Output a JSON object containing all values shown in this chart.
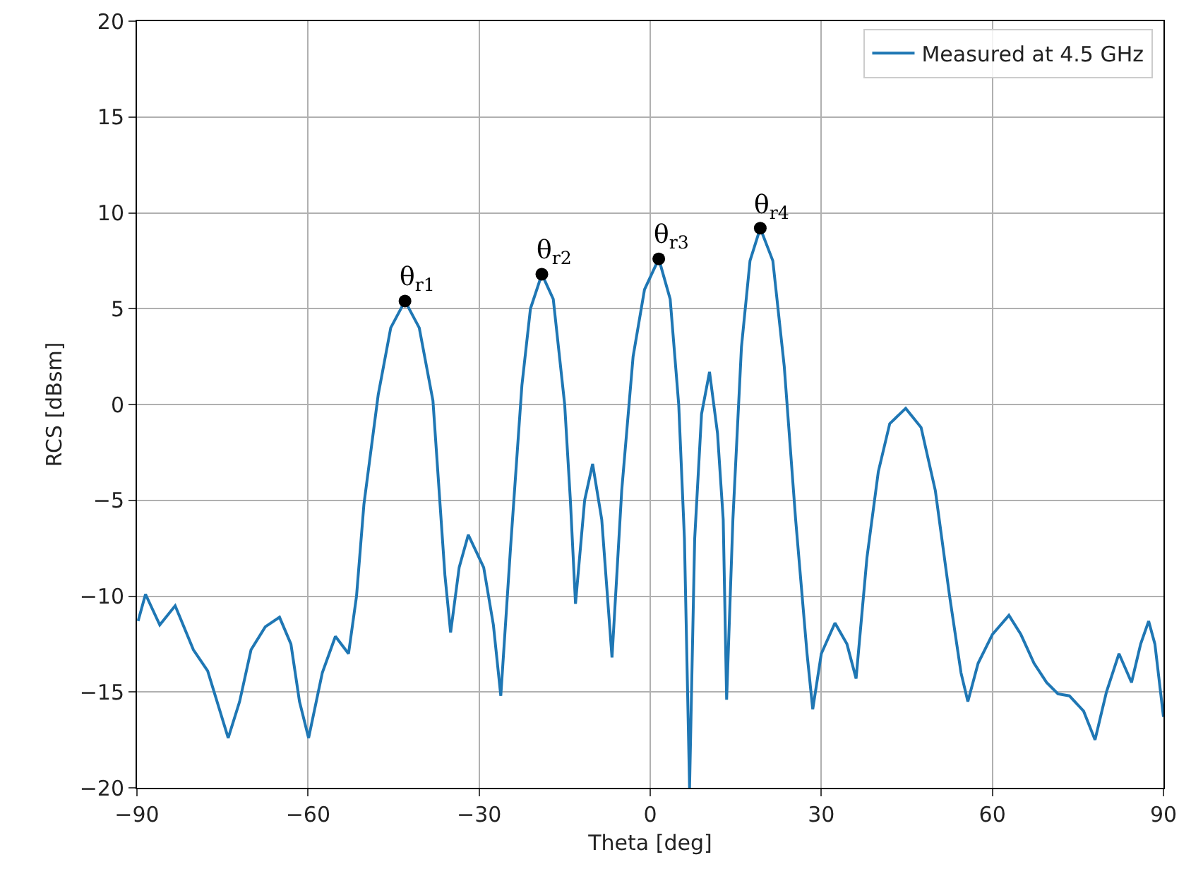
{
  "chart_data": {
    "type": "line",
    "xlabel": "Theta [deg]",
    "ylabel": "RCS [dBsm]",
    "xlim": [
      -90,
      90
    ],
    "xticks": [
      -90,
      -60,
      -30,
      0,
      30,
      60,
      90
    ],
    "ylim": [
      -20,
      20
    ],
    "yticks": [
      -20,
      -15,
      -10,
      -5,
      0,
      5,
      10,
      15,
      20
    ],
    "grid": true,
    "legend": "top right",
    "series": [
      {
        "name": "Measured at 4.5 GHz",
        "color": "#1f77b4",
        "marker": "none",
        "x": [
          -89.8,
          -88.5,
          -86,
          -83.3,
          -80.1,
          -77.6,
          -74,
          -72,
          -70,
          -67.5,
          -65,
          -63,
          -61.5,
          -59.9,
          -57.5,
          -55.2,
          -52.9,
          -51.5,
          -50.2,
          -47.7,
          -45.5,
          -43,
          -40.5,
          -38.1,
          -36,
          -35,
          -33.5,
          -31.9,
          -29.2,
          -27.5,
          -26.2,
          -24.5,
          -22.5,
          -21,
          -19,
          -17,
          -15,
          -14,
          -13.1,
          -11.5,
          -10.1,
          -8.5,
          -6.7,
          -5,
          -3,
          -1,
          1.5,
          3.5,
          5,
          6,
          6.9,
          7.8,
          9,
          10.4,
          11.8,
          12.8,
          13.4,
          14.5,
          16,
          17.5,
          19.3,
          21.5,
          23.5,
          25.5,
          27.5,
          28.5,
          30,
          32.4,
          34.5,
          36.1,
          38,
          40,
          42,
          44.8,
          47.5,
          50,
          52.5,
          54.5,
          55.7,
          57.5,
          60,
          62.9,
          65,
          67.3,
          69.5,
          71.5,
          73.5,
          76,
          78,
          80,
          82.2,
          84.4,
          86,
          87.4,
          88.5,
          90
        ],
        "values": [
          -11.3,
          -9.9,
          -11.5,
          -10.5,
          -12.8,
          -13.9,
          -17.4,
          -15.5,
          -12.8,
          -11.6,
          -11.1,
          -12.5,
          -15.5,
          -17.4,
          -14,
          -12.1,
          -13,
          -10,
          -5.2,
          0.5,
          4,
          5.4,
          4,
          0.2,
          -8.9,
          -11.9,
          -8.5,
          -6.8,
          -8.5,
          -11.5,
          -15.2,
          -7.5,
          1,
          5,
          6.8,
          5.5,
          0,
          -5,
          -10.4,
          -5,
          -3.1,
          -6,
          -13.2,
          -4.5,
          2.5,
          6,
          7.6,
          5.5,
          0,
          -7,
          -20,
          -7,
          -0.5,
          1.7,
          -1.5,
          -6,
          -15.4,
          -6,
          3,
          7.5,
          9.2,
          7.5,
          2,
          -6,
          -13,
          -15.9,
          -13,
          -11.4,
          -12.5,
          -14.3,
          -8,
          -3.5,
          -1,
          -0.2,
          -1.2,
          -4.5,
          -10,
          -14,
          -15.5,
          -13.5,
          -12,
          -11,
          -12,
          -13.5,
          -14.5,
          -15.1,
          -15.2,
          -16,
          -17.5,
          -15,
          -13,
          -14.5,
          -12.5,
          -11.3,
          -12.5,
          -16.3
        ]
      },
      {
        "type": "scatter",
        "color": "#000000",
        "marker": "circle",
        "x": [
          -43,
          -19,
          1.5,
          19.3
        ],
        "values": [
          5.4,
          6.8,
          7.6,
          9.2
        ]
      }
    ],
    "annotations": [
      {
        "text": "θ$_{r1}$",
        "x": -43,
        "y": 5.4
      },
      {
        "text": "θ$_{r2}$",
        "x": -19,
        "y": 6.8
      },
      {
        "text": "θ$_{r3}$",
        "x": 1.5,
        "y": 7.6
      },
      {
        "text": "θ$_{r4}$",
        "x": 19.3,
        "y": 9.2
      }
    ]
  }
}
